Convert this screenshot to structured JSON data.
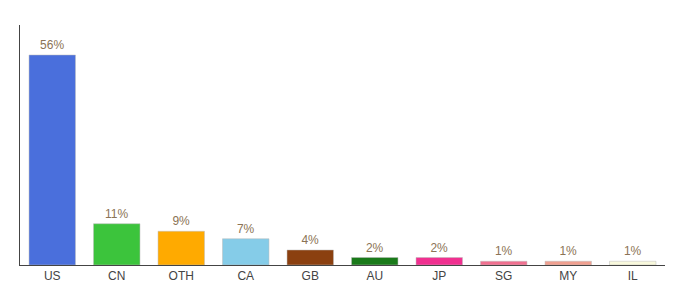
{
  "chart_data": {
    "type": "bar",
    "categories": [
      "US",
      "CN",
      "OTH",
      "CA",
      "GB",
      "AU",
      "JP",
      "SG",
      "MY",
      "IL"
    ],
    "values": [
      56,
      11,
      9,
      7,
      4,
      2,
      2,
      1,
      1,
      1
    ],
    "value_labels": [
      "56%",
      "11%",
      "9%",
      "7%",
      "4%",
      "2%",
      "2%",
      "1%",
      "1%",
      "1%"
    ],
    "colors": [
      "#4a6fdc",
      "#3cc43c",
      "#ffaa00",
      "#85cce8",
      "#8b4010",
      "#1a7a1a",
      "#f03090",
      "#f07090",
      "#f0a090",
      "#f8f8dc"
    ],
    "ylim": [
      0,
      64
    ],
    "yticks": [],
    "grid": false,
    "data_labels": true,
    "tick_labels": "x"
  }
}
